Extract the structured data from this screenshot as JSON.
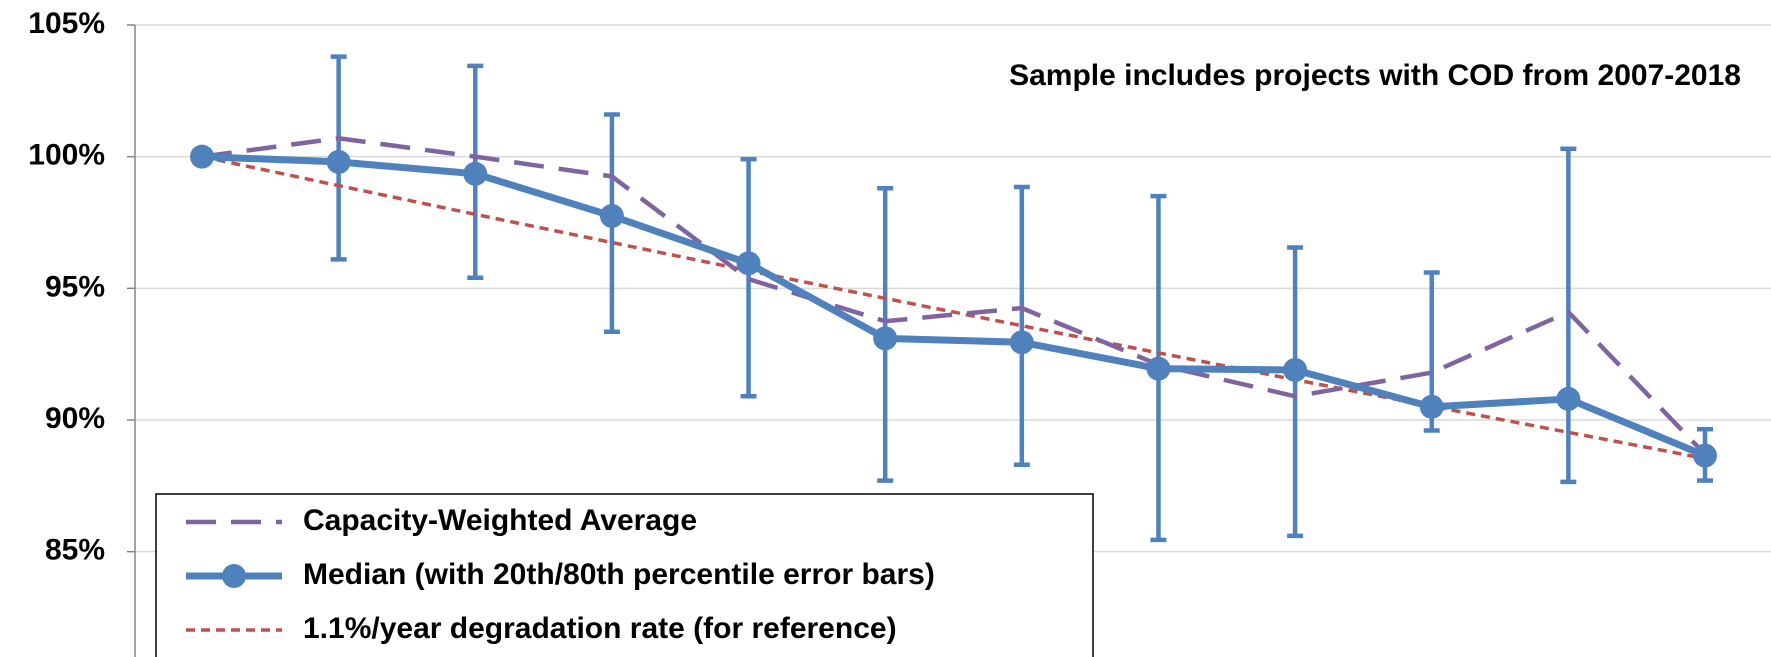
{
  "chart_data": {
    "type": "line",
    "annotation": "Sample includes projects with COD from 2007-2018",
    "categories": [
      null,
      null,
      null,
      null,
      null,
      null,
      null,
      null,
      null,
      null,
      null,
      null
    ],
    "ylim": [
      81,
      105
    ],
    "yticks": [
      {
        "value": 85,
        "label": "85%"
      },
      {
        "value": 90,
        "label": "90%"
      },
      {
        "value": 95,
        "label": "95%"
      },
      {
        "value": 100,
        "label": "100%"
      },
      {
        "value": 105,
        "label": "105%"
      }
    ],
    "grid": true,
    "legend": "bottom-left",
    "series": [
      {
        "name": "Capacity-Weighted Average",
        "color": "#8064a2",
        "style": "dashed",
        "values": [
          100,
          100.7,
          100.0,
          99.25,
          95.35,
          93.75,
          94.25,
          92.1,
          90.9,
          91.8,
          94.1,
          88.7
        ]
      },
      {
        "name": "Median (with 20th/80th percentile error bars)",
        "color": "#4f81bd",
        "style": "solid-markers",
        "values": [
          100,
          99.8,
          99.35,
          97.75,
          95.95,
          93.1,
          92.95,
          91.95,
          91.9,
          90.5,
          90.8,
          88.65
        ],
        "upper": [
          null,
          103.8,
          103.45,
          101.6,
          99.9,
          98.8,
          98.85,
          98.5,
          96.55,
          95.6,
          100.3,
          89.65
        ],
        "lower": [
          null,
          96.1,
          95.4,
          93.35,
          90.9,
          87.7,
          88.3,
          85.45,
          85.6,
          89.6,
          87.65,
          87.7
        ]
      },
      {
        "name": "1.1%/year degradation rate (for reference)",
        "color": "#c0504d",
        "style": "dotted",
        "values": [
          100,
          98.9,
          97.81,
          96.74,
          95.67,
          94.62,
          93.58,
          92.55,
          91.53,
          90.52,
          89.53,
          88.54
        ]
      }
    ]
  }
}
